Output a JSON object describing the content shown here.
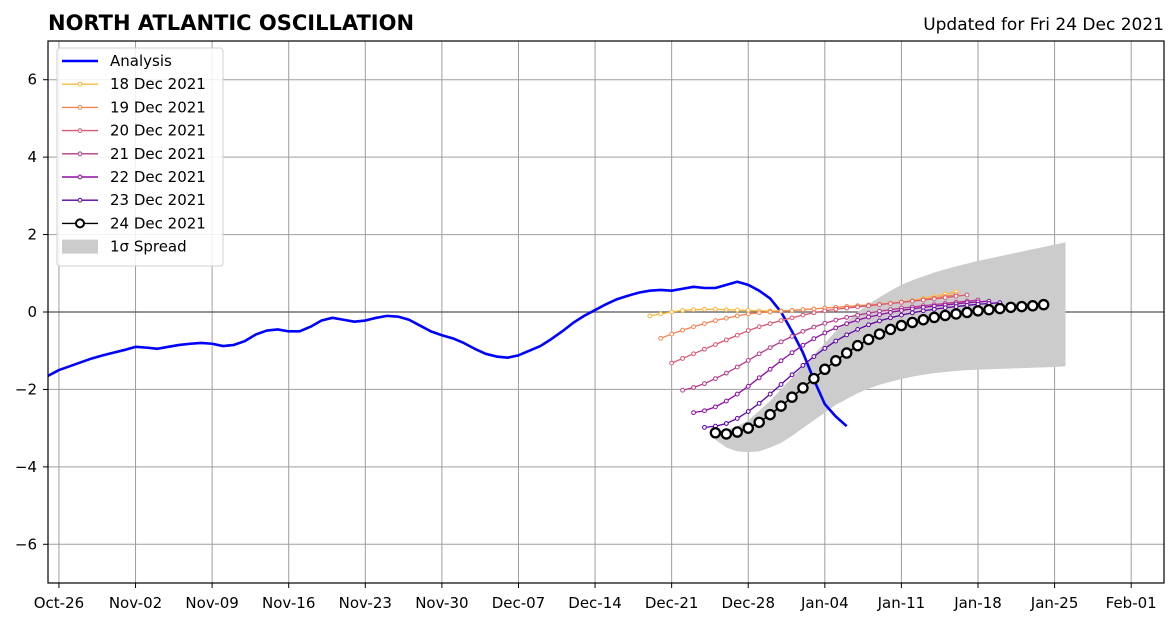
{
  "chart_data": {
    "type": "line",
    "title": "NORTH ATLANTIC OSCILLATION",
    "subtitle": "Updated for Fri 24 Dec 2021",
    "xlabel": "",
    "ylabel": "",
    "x_tick_labels": [
      "Oct-26",
      "Nov-02",
      "Nov-09",
      "Nov-16",
      "Nov-23",
      "Nov-30",
      "Dec-07",
      "Dec-14",
      "Dec-21",
      "Dec-28",
      "Jan-04",
      "Jan-11",
      "Jan-18",
      "Jan-25",
      "Feb-01"
    ],
    "x_range": [
      "2021-10-25",
      "2022-02-04"
    ],
    "y_ticks": [
      -6,
      -4,
      -2,
      0,
      2,
      4,
      6
    ],
    "y_tick_labels": [
      "−6",
      "−4",
      "−2",
      "0",
      "2",
      "4",
      "6"
    ],
    "ylim": [
      -7,
      7
    ],
    "grid": true,
    "legend_position": "top-left",
    "analysis": {
      "name": "Analysis",
      "color": "#0000ff",
      "start_date": "2021-10-25",
      "values": [
        -1.65,
        -1.5,
        -1.4,
        -1.3,
        -1.2,
        -1.12,
        -1.05,
        -0.98,
        -0.9,
        -0.92,
        -0.95,
        -0.9,
        -0.85,
        -0.82,
        -0.8,
        -0.82,
        -0.88,
        -0.85,
        -0.75,
        -0.58,
        -0.48,
        -0.45,
        -0.5,
        -0.5,
        -0.38,
        -0.22,
        -0.15,
        -0.2,
        -0.25,
        -0.22,
        -0.15,
        -0.1,
        -0.12,
        -0.2,
        -0.35,
        -0.5,
        -0.6,
        -0.68,
        -0.8,
        -0.95,
        -1.08,
        -1.15,
        -1.18,
        -1.12,
        -1.0,
        -0.88,
        -0.7,
        -0.5,
        -0.28,
        -0.1,
        0.05,
        0.2,
        0.33,
        0.42,
        0.5,
        0.55,
        0.57,
        0.55,
        0.6,
        0.65,
        0.62,
        0.62,
        0.7,
        0.78,
        0.7,
        0.55,
        0.35,
        0.0,
        -0.5,
        -1.05,
        -1.75,
        -2.38,
        -2.7,
        -2.95
      ]
    },
    "forecasts": [
      {
        "name": "18 Dec 2021",
        "color": "#f8b83e",
        "start_date": "2021-12-19",
        "values": [
          -0.1,
          -0.05,
          0.0,
          0.04,
          0.06,
          0.07,
          0.07,
          0.06,
          0.05,
          0.04,
          0.03,
          0.03,
          0.03,
          0.04,
          0.06,
          0.08,
          0.1,
          0.12,
          0.14,
          0.16,
          0.18,
          0.2,
          0.23,
          0.26,
          0.3,
          0.35,
          0.4,
          0.46,
          0.52
        ]
      },
      {
        "name": "19 Dec 2021",
        "color": "#f3834f",
        "start_date": "2021-12-20",
        "values": [
          -0.68,
          -0.57,
          -0.47,
          -0.38,
          -0.3,
          -0.22,
          -0.16,
          -0.1,
          -0.05,
          -0.02,
          0.0,
          0.02,
          0.04,
          0.06,
          0.08,
          0.1,
          0.12,
          0.14,
          0.16,
          0.18,
          0.2,
          0.22,
          0.25,
          0.28,
          0.32,
          0.36,
          0.4,
          0.45
        ]
      },
      {
        "name": "20 Dec 2021",
        "color": "#dc5671",
        "start_date": "2021-12-21",
        "values": [
          -1.32,
          -1.2,
          -1.08,
          -0.96,
          -0.84,
          -0.72,
          -0.6,
          -0.48,
          -0.38,
          -0.3,
          -0.22,
          -0.15,
          -0.08,
          -0.02,
          0.03,
          0.07,
          0.1,
          0.13,
          0.16,
          0.19,
          0.22,
          0.25,
          0.28,
          0.31,
          0.34,
          0.37,
          0.41,
          0.44
        ]
      },
      {
        "name": "21 Dec 2021",
        "color": "#b63a8d",
        "start_date": "2021-12-22",
        "values": [
          -2.02,
          -1.95,
          -1.85,
          -1.72,
          -1.58,
          -1.42,
          -1.25,
          -1.08,
          -0.92,
          -0.77,
          -0.63,
          -0.5,
          -0.39,
          -0.29,
          -0.21,
          -0.14,
          -0.08,
          -0.03,
          0.02,
          0.06,
          0.1,
          0.13,
          0.16,
          0.19,
          0.22,
          0.25,
          0.28,
          0.31
        ]
      },
      {
        "name": "22 Dec 2021",
        "color": "#8f0da4",
        "start_date": "2021-12-23",
        "values": [
          -2.6,
          -2.55,
          -2.45,
          -2.3,
          -2.12,
          -1.92,
          -1.7,
          -1.48,
          -1.26,
          -1.05,
          -0.86,
          -0.69,
          -0.54,
          -0.41,
          -0.3,
          -0.21,
          -0.13,
          -0.07,
          -0.01,
          0.04,
          0.08,
          0.12,
          0.15,
          0.18,
          0.21,
          0.24,
          0.26,
          0.28
        ]
      },
      {
        "name": "23 Dec 2021",
        "color": "#5c01a6",
        "start_date": "2021-12-24",
        "values": [
          -2.98,
          -2.95,
          -2.88,
          -2.75,
          -2.57,
          -2.36,
          -2.12,
          -1.87,
          -1.62,
          -1.38,
          -1.15,
          -0.94,
          -0.75,
          -0.59,
          -0.45,
          -0.33,
          -0.23,
          -0.15,
          -0.08,
          -0.02,
          0.03,
          0.07,
          0.11,
          0.14,
          0.17,
          0.2,
          0.22,
          0.24
        ]
      },
      {
        "name": "24 Dec 2021",
        "color": "#000000",
        "start_date": "2021-12-25",
        "values": [
          -3.12,
          -3.15,
          -3.1,
          -3.0,
          -2.85,
          -2.65,
          -2.43,
          -2.2,
          -1.96,
          -1.72,
          -1.48,
          -1.26,
          -1.06,
          -0.87,
          -0.71,
          -0.57,
          -0.45,
          -0.35,
          -0.27,
          -0.2,
          -0.14,
          -0.09,
          -0.05,
          -0.01,
          0.03,
          0.06,
          0.09,
          0.12,
          0.14,
          0.16,
          0.19
        ]
      }
    ],
    "spread": {
      "name": "1σ Spread",
      "color": "#cccccc",
      "start_date": "2021-12-25",
      "upper": [
        -3.12,
        -3.05,
        -2.95,
        -2.8,
        -2.55,
        -2.3,
        -2.0,
        -1.7,
        -1.4,
        -1.1,
        -0.8,
        -0.5,
        -0.25,
        0.0,
        0.2,
        0.38,
        0.55,
        0.7,
        0.82,
        0.92,
        1.02,
        1.1,
        1.18,
        1.25,
        1.32,
        1.38,
        1.44,
        1.5,
        1.56,
        1.62,
        1.68,
        1.74,
        1.8
      ],
      "lower": [
        -3.3,
        -3.5,
        -3.6,
        -3.62,
        -3.6,
        -3.5,
        -3.38,
        -3.2,
        -3.0,
        -2.8,
        -2.6,
        -2.4,
        -2.25,
        -2.1,
        -1.98,
        -1.88,
        -1.8,
        -1.73,
        -1.67,
        -1.62,
        -1.58,
        -1.55,
        -1.52,
        -1.5,
        -1.49,
        -1.48,
        -1.47,
        -1.46,
        -1.45,
        -1.44,
        -1.43,
        -1.42,
        -1.4
      ]
    }
  }
}
